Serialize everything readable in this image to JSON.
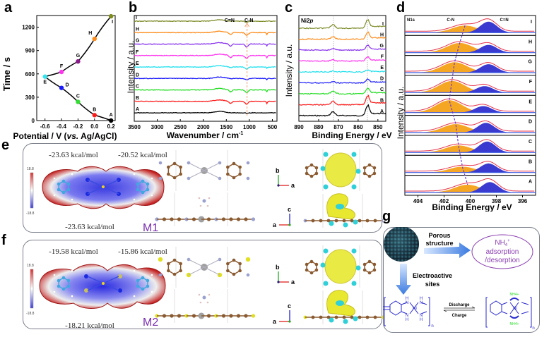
{
  "panel_labels": {
    "a": "a",
    "b": "b",
    "c": "c",
    "d": "d",
    "e": "e",
    "f": "f",
    "g": "g"
  },
  "chart_data": [
    {
      "id": "a",
      "type": "scatter",
      "title": "",
      "xlabel": "Potential / V (vs. Ag/AgCl)",
      "xlabel_parts": [
        "Potential / V (",
        "vs.",
        " Ag/AgCl)"
      ],
      "ylabel": "Time / s",
      "xlim": [
        -0.7,
        0.25
      ],
      "ylim": [
        0,
        1350
      ],
      "xticks": [
        -0.6,
        -0.4,
        -0.2,
        0.0,
        0.2
      ],
      "xtick_labels": [
        "-0.6",
        "-0.4",
        "-0.2",
        "0.0",
        "0.2"
      ],
      "yticks": [
        0,
        300,
        600,
        900,
        1200
      ],
      "ytick_labels": [
        "0",
        "300",
        "600",
        "900",
        "1200"
      ],
      "points": [
        {
          "label": "A",
          "x": 0.2,
          "y": 0,
          "color": "#000000"
        },
        {
          "label": "B",
          "x": 0.0,
          "y": 70,
          "color": "#ff1a1a"
        },
        {
          "label": "C",
          "x": -0.2,
          "y": 240,
          "color": "#33dd33"
        },
        {
          "label": "D",
          "x": -0.4,
          "y": 420,
          "color": "#1a1aff"
        },
        {
          "label": "E",
          "x": -0.6,
          "y": 565,
          "color": "#33e6f0"
        },
        {
          "label": "F",
          "x": -0.4,
          "y": 625,
          "color": "#ff33ee"
        },
        {
          "label": "G",
          "x": -0.2,
          "y": 760,
          "color": "#8a1a8a"
        },
        {
          "label": "H",
          "x": 0.0,
          "y": 1050,
          "color": "#ff8c1a"
        },
        {
          "label": "I",
          "x": 0.2,
          "y": 1340,
          "color": "#7f8c1a"
        }
      ]
    },
    {
      "id": "b",
      "type": "line",
      "title": "",
      "xlabel": "Wavenumber / cm-1",
      "xlabel_main": "Wavenumber / cm",
      "xlabel_sup": "-1",
      "ylabel": "Intensity / a.u.",
      "xlim": [
        3500,
        400
      ],
      "xticks": [
        3500,
        3000,
        2500,
        2000,
        1500,
        1000,
        500
      ],
      "xtick_labels": [
        "3500",
        "3000",
        "2500",
        "2000",
        "1500",
        "1000",
        "500"
      ],
      "annotations": [
        "C=N",
        "C-N"
      ],
      "annotation_positions_cm": [
        1400,
        1050
      ],
      "series": [
        {
          "name": "A",
          "color": "#000000",
          "features": "flat, broad bump at 1650, dip at 1050"
        },
        {
          "name": "B",
          "color": "#ff1a1a",
          "features": "dips at 1400, 1050, 620"
        },
        {
          "name": "C",
          "color": "#22dd22",
          "features": "dips at 1400, 1050, 620"
        },
        {
          "name": "D",
          "color": "#1a1aff",
          "features": "small dips at 1050, 620"
        },
        {
          "name": "E",
          "color": "#22e0ee",
          "features": "small dips at 1400, 1050, 620"
        },
        {
          "name": "F",
          "color": "#ff33ee",
          "features": "dips at 1400, 1050, 620"
        },
        {
          "name": "G",
          "color": "#8833ee",
          "features": "dips at 1400, 1050, 620"
        },
        {
          "name": "H",
          "color": "#ff8c1a",
          "features": "dips at 1400, 1050, 620"
        },
        {
          "name": "I",
          "color": "#7f8c2a",
          "features": "bump at 1650, dip at 1050"
        }
      ]
    },
    {
      "id": "c",
      "type": "line",
      "title": "Ni2p",
      "title_main": "Ni2",
      "title_italic": "p",
      "xlabel": "Binding Energy / eV",
      "ylabel": "Intensity / a.u.",
      "xlim": [
        890,
        846
      ],
      "xticks": [
        890,
        880,
        870,
        860,
        850
      ],
      "xtick_labels": [
        "890",
        "880",
        "870",
        "860",
        "850"
      ],
      "reference_lines_eV": [
        872.5,
        855.3
      ],
      "series": [
        {
          "name": "A",
          "color": "#000000",
          "peak_855": 1.0,
          "peak_872": 0.4
        },
        {
          "name": "B",
          "color": "#ff1a1a",
          "peak_855": 0.85,
          "peak_872": 0.35
        },
        {
          "name": "C",
          "color": "#22dd22",
          "peak_855": 0.55,
          "peak_872": 0.25
        },
        {
          "name": "D",
          "color": "#1a1aff",
          "peak_855": 0.35,
          "peak_872": 0.12
        },
        {
          "name": "E",
          "color": "#22e0ee",
          "peak_855": 0.2,
          "peak_872": 0.08
        },
        {
          "name": "F",
          "color": "#ff33ee",
          "peak_855": 0.4,
          "peak_872": 0.12
        },
        {
          "name": "G",
          "color": "#8833ee",
          "peak_855": 0.45,
          "peak_872": 0.15
        },
        {
          "name": "H",
          "color": "#ff8c1a",
          "peak_855": 0.65,
          "peak_872": 0.25
        },
        {
          "name": "I",
          "color": "#7f8c2a",
          "peak_855": 0.85,
          "peak_872": 0.35
        }
      ]
    },
    {
      "id": "d",
      "type": "area",
      "title": "N1s",
      "title_main": "N1",
      "title_italic": "s",
      "xlabel": "Binding Energy / eV",
      "ylabel": "Intensity / a.u.",
      "xlim": [
        405,
        395
      ],
      "xticks": [
        404,
        402,
        400,
        398,
        396
      ],
      "xtick_labels": [
        "404",
        "402",
        "400",
        "398",
        "396"
      ],
      "annotations": [
        "C-N",
        "C=N"
      ],
      "component_colors": {
        "C-N": "#f5a623",
        "C=N": "#3a3ad0",
        "fit": "#e8334a",
        "baseline": "#3a5ae0"
      },
      "series": [
        {
          "name": "I",
          "cn_center": 400.4,
          "cn_amp": 0.55,
          "ceqn_center": 398.6,
          "ceqn_amp": 0.85
        },
        {
          "name": "H",
          "cn_center": 400.8,
          "cn_amp": 0.75,
          "ceqn_center": 398.6,
          "ceqn_amp": 0.6
        },
        {
          "name": "G",
          "cn_center": 401.2,
          "cn_amp": 0.8,
          "ceqn_center": 398.6,
          "ceqn_amp": 0.65
        },
        {
          "name": "F",
          "cn_center": 401.4,
          "cn_amp": 0.9,
          "ceqn_center": 398.9,
          "ceqn_amp": 0.5
        },
        {
          "name": "E",
          "cn_center": 401.6,
          "cn_amp": 0.95,
          "ceqn_center": 399.0,
          "ceqn_amp": 0.5
        },
        {
          "name": "D",
          "cn_center": 401.1,
          "cn_amp": 0.65,
          "ceqn_center": 398.8,
          "ceqn_amp": 0.75
        },
        {
          "name": "C",
          "cn_center": 400.9,
          "cn_amp": 0.55,
          "ceqn_center": 398.7,
          "ceqn_amp": 0.85
        },
        {
          "name": "B",
          "cn_center": 400.6,
          "cn_amp": 0.45,
          "ceqn_center": 398.6,
          "ceqn_amp": 0.7
        },
        {
          "name": "A",
          "cn_center": 400.2,
          "cn_amp": 0.6,
          "ceqn_center": 398.5,
          "ceqn_amp": 0.8
        }
      ]
    }
  ],
  "panel_e": {
    "model": "M1",
    "energies": [
      "-23.63 kcal/mol",
      "-20.52 kcal/mol",
      "-23.63 kcal/mol"
    ],
    "colorbar": {
      "max": "18.8",
      "min": "-18.8"
    },
    "axes_top": {
      "up": "b",
      "right": "a"
    },
    "axes_bottom": {
      "up": "c",
      "left": "a"
    }
  },
  "panel_f": {
    "model": "M2",
    "energies": [
      "-19.58 kcal/mol",
      "-15.86 kcal/mol",
      "-18.21 kcal/mol"
    ],
    "colorbar": {
      "max": "18.8",
      "min": "-18.8"
    },
    "axes_top": {
      "up": "b",
      "right": "a"
    },
    "axes_bottom": {
      "up": "c",
      "left": "a"
    }
  },
  "panel_g": {
    "porous_label_1": "Porous",
    "porous_label_2": "structure",
    "ellipse_line1_main": "NH",
    "ellipse_line1_sub": "4",
    "ellipse_line1_sup": "+",
    "ellipse_line2": "adsorption",
    "ellipse_line3": "/desorption",
    "electro_label_1": "Electroactive",
    "electro_label_2": "sites",
    "discharge": "Discharge",
    "charge": "Charge",
    "nh4_label": "NH4+",
    "ni_label": "Ni",
    "n_label": "N",
    "h_label": "H",
    "n_sub": "n"
  }
}
